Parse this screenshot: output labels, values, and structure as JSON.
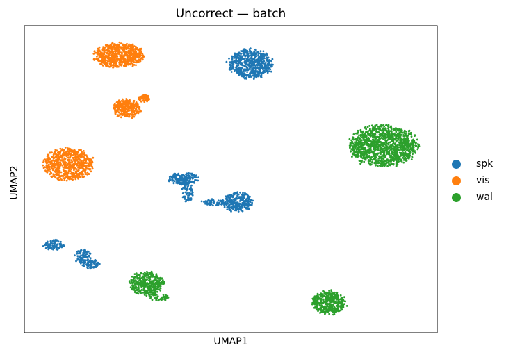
{
  "chart_data": {
    "type": "scatter",
    "title": "Uncorrect — batch",
    "xlabel": "UMAP1",
    "ylabel": "UMAP2",
    "xlim": [
      0,
      100
    ],
    "ylim": [
      0,
      100
    ],
    "grid": false,
    "axis_ticks": false,
    "legend_position": "right",
    "series": [
      {
        "name": "spk",
        "color": "#1f77b4",
        "clusters": [
          {
            "cx": 54.8,
            "cy": 87.6,
            "rx": 5.4,
            "ry": 4.8,
            "n": 600
          },
          {
            "cx": 38.5,
            "cy": 50.2,
            "rx": 3.6,
            "ry": 2.0,
            "n": 170
          },
          {
            "cx": 39.5,
            "cy": 45.5,
            "rx": 1.4,
            "ry": 3.0,
            "n": 60
          },
          {
            "cx": 46.0,
            "cy": 42.5,
            "rx": 3.0,
            "ry": 1.0,
            "n": 60
          },
          {
            "cx": 51.7,
            "cy": 42.5,
            "rx": 3.6,
            "ry": 3.2,
            "n": 260
          },
          {
            "cx": 7.2,
            "cy": 28.5,
            "rx": 2.5,
            "ry": 1.7,
            "n": 90
          },
          {
            "cx": 14.2,
            "cy": 25.0,
            "rx": 2.0,
            "ry": 2.5,
            "n": 90
          },
          {
            "cx": 16.0,
            "cy": 22.4,
            "rx": 2.2,
            "ry": 1.6,
            "n": 80
          }
        ]
      },
      {
        "name": "vis",
        "color": "#ff7f0e",
        "clusters": [
          {
            "cx": 22.9,
            "cy": 90.3,
            "rx": 6.0,
            "ry": 4.0,
            "n": 650
          },
          {
            "cx": 24.8,
            "cy": 73.0,
            "rx": 3.4,
            "ry": 3.0,
            "n": 280
          },
          {
            "cx": 29.0,
            "cy": 76.3,
            "rx": 1.4,
            "ry": 1.2,
            "n": 60
          },
          {
            "cx": 10.6,
            "cy": 54.8,
            "rx": 6.0,
            "ry": 5.2,
            "n": 650
          }
        ]
      },
      {
        "name": "wal",
        "color": "#2ca02c",
        "clusters": [
          {
            "cx": 87.0,
            "cy": 60.8,
            "rx": 8.2,
            "ry": 6.8,
            "n": 1200
          },
          {
            "cx": 29.5,
            "cy": 16.0,
            "rx": 4.2,
            "ry": 3.8,
            "n": 380
          },
          {
            "cx": 32.5,
            "cy": 11.5,
            "rx": 2.5,
            "ry": 1.0,
            "n": 50
          },
          {
            "cx": 73.7,
            "cy": 9.8,
            "rx": 4.2,
            "ry": 3.8,
            "n": 420
          }
        ]
      }
    ]
  }
}
